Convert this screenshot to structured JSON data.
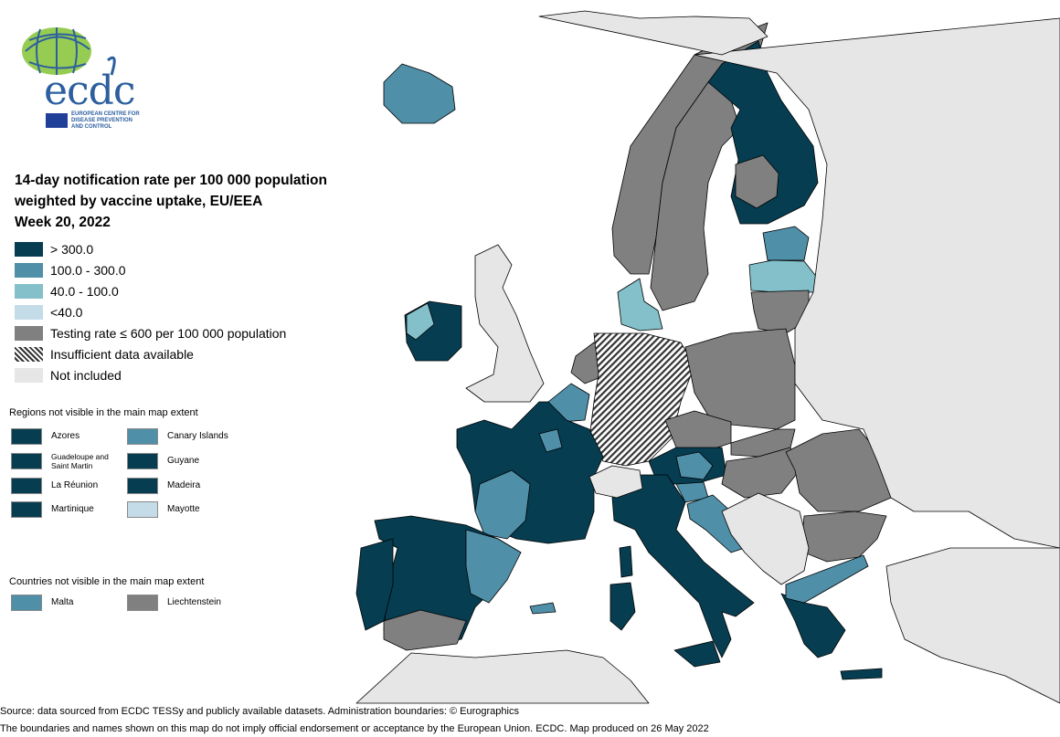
{
  "colors": {
    "sea": "#ffffff",
    "not_included": "#e6e6e6",
    "border": "#000000",
    "cat_gt300": "#063d51",
    "cat_100_300": "#4f8fa8",
    "cat_40_100": "#83c0ca",
    "cat_lt40": "#c4dbe8",
    "cat_testing": "#808080"
  },
  "logo": {
    "wordmark": "ecdc",
    "org_lines": "EUROPEAN CENTRE FOR DISEASE PREVENTION AND CONTROL",
    "icon": "globe-icon"
  },
  "title": {
    "line1": "14-day notification rate per 100 000 population",
    "line2": "weighted by vaccine uptake, EU/EEA",
    "line3": "Week 20, 2022"
  },
  "legend": [
    {
      "label": "> 300.0",
      "category": "cat_gt300"
    },
    {
      "label": "100.0 - 300.0",
      "category": "cat_100_300"
    },
    {
      "label": "40.0 - 100.0",
      "category": "cat_40_100"
    },
    {
      "label": "<40.0",
      "category": "cat_lt40"
    },
    {
      "label": "Testing rate ≤ 600 per 100 000 population",
      "category": "cat_testing"
    },
    {
      "label": "Insufficient data available",
      "category": "insufficient"
    },
    {
      "label": "Not included",
      "category": "not_included"
    }
  ],
  "regions_section": {
    "heading": "Regions not visible in the main map extent",
    "items": [
      {
        "label": "Azores",
        "category": "cat_gt300"
      },
      {
        "label": "Canary Islands",
        "category": "cat_100_300"
      },
      {
        "label": "Guadeloupe and Saint Martin",
        "category": "cat_gt300"
      },
      {
        "label": "Guyane",
        "category": "cat_gt300"
      },
      {
        "label": "La Réunion",
        "category": "cat_gt300"
      },
      {
        "label": "Madeira",
        "category": "cat_gt300"
      },
      {
        "label": "Martinique",
        "category": "cat_gt300"
      },
      {
        "label": "Mayotte",
        "category": "cat_lt40"
      }
    ]
  },
  "countries_section": {
    "heading": "Countries not visible in the main map extent",
    "items": [
      {
        "label": "Malta",
        "category": "cat_100_300"
      },
      {
        "label": "Liechtenstein",
        "category": "cat_testing"
      }
    ]
  },
  "map_regions": [
    {
      "name": "iceland",
      "category": "cat_100_300"
    },
    {
      "name": "norway",
      "category": "cat_testing"
    },
    {
      "name": "sweden",
      "category": "cat_testing"
    },
    {
      "name": "finland",
      "category": "cat_gt300"
    },
    {
      "name": "finland-central",
      "category": "cat_testing"
    },
    {
      "name": "estonia",
      "category": "cat_100_300"
    },
    {
      "name": "latvia",
      "category": "cat_40_100"
    },
    {
      "name": "lithuania",
      "category": "cat_testing"
    },
    {
      "name": "denmark",
      "category": "cat_40_100"
    },
    {
      "name": "ireland",
      "category": "cat_gt300"
    },
    {
      "name": "ireland-west",
      "category": "cat_40_100"
    },
    {
      "name": "netherlands",
      "category": "cat_testing"
    },
    {
      "name": "belgium",
      "category": "cat_100_300"
    },
    {
      "name": "germany",
      "category": "insufficient"
    },
    {
      "name": "poland",
      "category": "cat_testing"
    },
    {
      "name": "czechia",
      "category": "cat_testing"
    },
    {
      "name": "slovakia",
      "category": "cat_testing"
    },
    {
      "name": "austria",
      "category": "cat_gt300"
    },
    {
      "name": "austria-west",
      "category": "cat_100_300"
    },
    {
      "name": "hungary",
      "category": "cat_testing"
    },
    {
      "name": "slovenia",
      "category": "cat_100_300"
    },
    {
      "name": "croatia",
      "category": "cat_100_300"
    },
    {
      "name": "romania",
      "category": "cat_testing"
    },
    {
      "name": "bulgaria",
      "category": "cat_testing"
    },
    {
      "name": "france",
      "category": "cat_gt300"
    },
    {
      "name": "france-southwest",
      "category": "cat_100_300"
    },
    {
      "name": "france-east",
      "category": "cat_100_300"
    },
    {
      "name": "spain",
      "category": "cat_gt300"
    },
    {
      "name": "spain-northeast",
      "category": "cat_100_300"
    },
    {
      "name": "spain-south",
      "category": "cat_testing"
    },
    {
      "name": "portugal",
      "category": "cat_gt300"
    },
    {
      "name": "italy",
      "category": "cat_gt300"
    },
    {
      "name": "sicily",
      "category": "cat_gt300"
    },
    {
      "name": "sardinia",
      "category": "cat_gt300"
    },
    {
      "name": "corsica",
      "category": "cat_gt300"
    },
    {
      "name": "balearic-islands",
      "category": "cat_100_300"
    },
    {
      "name": "greece",
      "category": "cat_gt300"
    },
    {
      "name": "greece-north",
      "category": "cat_100_300"
    },
    {
      "name": "crete",
      "category": "cat_gt300"
    },
    {
      "name": "cyprus",
      "category": "cat_100_300"
    },
    {
      "name": "united-kingdom",
      "category": "not_included"
    },
    {
      "name": "switzerland",
      "category": "not_included"
    },
    {
      "name": "western-balkans",
      "category": "not_included"
    },
    {
      "name": "russia-belarus-ukraine",
      "category": "not_included"
    },
    {
      "name": "turkey",
      "category": "not_included"
    },
    {
      "name": "north-africa",
      "category": "not_included"
    },
    {
      "name": "svalbard-russia-north",
      "category": "not_included"
    }
  ],
  "footer": {
    "source": "Source: data sourced from ECDC TESSy and publicly available datasets. Administration boundaries: © Eurographics",
    "disclaimer": "The boundaries and names shown on this map do not imply official endorsement or acceptance by the European Union. ECDC. Map produced on 26 May 2022"
  }
}
